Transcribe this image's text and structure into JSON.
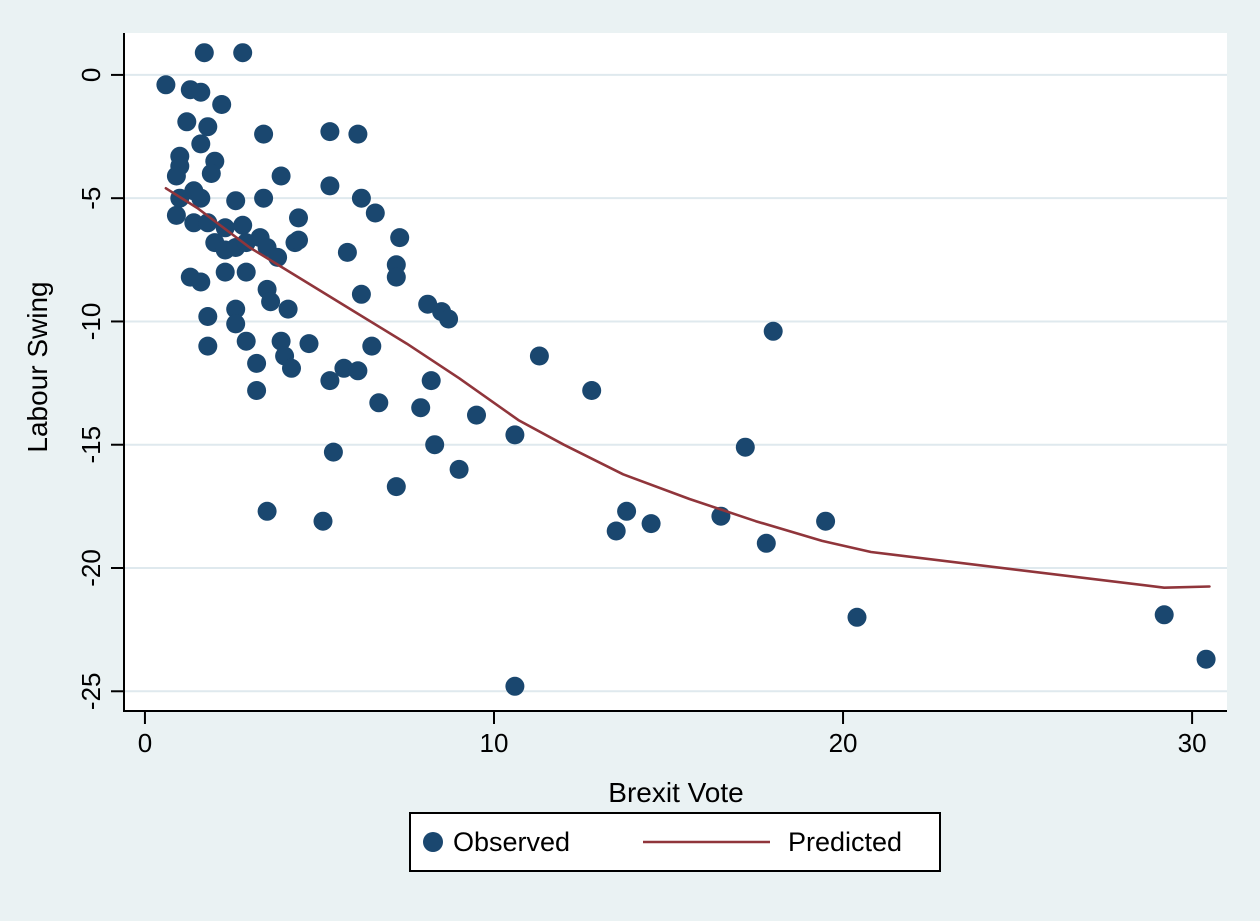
{
  "figure": {
    "kind": "statistical scatter plot with lowess fit (Stata s2color style)"
  },
  "colors": {
    "background": "#EAF2F3",
    "plot_background": "#FFFFFF",
    "grid": "#DFE9EE",
    "axis": "#000000",
    "observed_marker": "#1A476F",
    "predicted_line": "#90353B",
    "legend_border": "#000000",
    "legend_background": "#FFFFFF"
  },
  "chart_data": {
    "type": "scatter",
    "title": "",
    "xlabel": "Brexit Vote",
    "ylabel": "Labour Swing",
    "x_ticks": [
      0,
      10,
      20,
      30
    ],
    "y_ticks": [
      0,
      -5,
      -10,
      -15,
      -20,
      -25
    ],
    "x_domain": [
      -0.6,
      31.0
    ],
    "y_domain": [
      -25.8,
      1.7
    ],
    "grid": "horizontal-only",
    "legend": {
      "position": "bottom-center",
      "entries": [
        {
          "label": "Observed",
          "marker": "circle"
        },
        {
          "label": "Predicted",
          "marker": "line"
        }
      ]
    },
    "series": [
      {
        "name": "Observed",
        "type": "scatter",
        "color": "#1A476F",
        "points": [
          [
            1.7,
            0.9
          ],
          [
            2.8,
            0.9
          ],
          [
            0.6,
            -0.4
          ],
          [
            1.3,
            -0.6
          ],
          [
            1.6,
            -0.7
          ],
          [
            2.2,
            -1.2
          ],
          [
            1.2,
            -1.9
          ],
          [
            1.8,
            -2.1
          ],
          [
            3.4,
            -2.4
          ],
          [
            5.3,
            -2.3
          ],
          [
            6.1,
            -2.4
          ],
          [
            1.6,
            -2.8
          ],
          [
            1.0,
            -3.3
          ],
          [
            1.0,
            -3.7
          ],
          [
            2.0,
            -3.5
          ],
          [
            1.9,
            -4.0
          ],
          [
            0.9,
            -4.1
          ],
          [
            1.4,
            -4.7
          ],
          [
            1.0,
            -5.0
          ],
          [
            1.6,
            -5.0
          ],
          [
            3.9,
            -4.1
          ],
          [
            5.3,
            -4.5
          ],
          [
            2.6,
            -5.1
          ],
          [
            3.4,
            -5.0
          ],
          [
            6.2,
            -5.0
          ],
          [
            0.9,
            -5.7
          ],
          [
            1.4,
            -6.0
          ],
          [
            1.8,
            -6.0
          ],
          [
            2.3,
            -6.2
          ],
          [
            2.8,
            -6.1
          ],
          [
            4.4,
            -5.8
          ],
          [
            6.6,
            -5.6
          ],
          [
            7.3,
            -6.6
          ],
          [
            2.0,
            -6.8
          ],
          [
            2.3,
            -7.1
          ],
          [
            2.6,
            -7.0
          ],
          [
            2.9,
            -6.8
          ],
          [
            3.3,
            -6.6
          ],
          [
            3.5,
            -7.0
          ],
          [
            3.8,
            -7.4
          ],
          [
            4.3,
            -6.8
          ],
          [
            4.4,
            -6.7
          ],
          [
            5.8,
            -7.2
          ],
          [
            7.2,
            -7.7
          ],
          [
            7.2,
            -8.2
          ],
          [
            1.3,
            -8.2
          ],
          [
            1.6,
            -8.4
          ],
          [
            2.3,
            -8.0
          ],
          [
            2.9,
            -8.0
          ],
          [
            3.5,
            -8.7
          ],
          [
            3.6,
            -9.2
          ],
          [
            4.1,
            -9.5
          ],
          [
            6.2,
            -8.9
          ],
          [
            8.1,
            -9.3
          ],
          [
            8.5,
            -9.6
          ],
          [
            8.7,
            -9.9
          ],
          [
            1.8,
            -9.8
          ],
          [
            2.6,
            -9.5
          ],
          [
            2.6,
            -10.1
          ],
          [
            1.8,
            -11.0
          ],
          [
            2.9,
            -10.8
          ],
          [
            3.9,
            -10.8
          ],
          [
            4.7,
            -10.9
          ],
          [
            3.2,
            -11.7
          ],
          [
            4.0,
            -11.4
          ],
          [
            4.2,
            -11.9
          ],
          [
            5.3,
            -12.4
          ],
          [
            5.7,
            -11.9
          ],
          [
            6.1,
            -12.0
          ],
          [
            6.5,
            -11.0
          ],
          [
            8.2,
            -12.4
          ],
          [
            3.2,
            -12.8
          ],
          [
            6.7,
            -13.3
          ],
          [
            7.9,
            -13.5
          ],
          [
            9.5,
            -13.8
          ],
          [
            5.4,
            -15.3
          ],
          [
            8.3,
            -15.0
          ],
          [
            9.0,
            -16.0
          ],
          [
            7.2,
            -16.7
          ],
          [
            3.5,
            -17.7
          ],
          [
            5.1,
            -18.1
          ],
          [
            11.3,
            -11.4
          ],
          [
            18.0,
            -10.4
          ],
          [
            12.8,
            -12.8
          ],
          [
            10.6,
            -14.6
          ],
          [
            17.2,
            -15.1
          ],
          [
            13.8,
            -17.7
          ],
          [
            13.5,
            -18.5
          ],
          [
            14.5,
            -18.2
          ],
          [
            16.5,
            -17.9
          ],
          [
            17.8,
            -19.0
          ],
          [
            19.5,
            -18.1
          ],
          [
            20.4,
            -22.0
          ],
          [
            10.6,
            -24.8
          ],
          [
            29.2,
            -21.9
          ],
          [
            30.4,
            -23.7
          ]
        ]
      },
      {
        "name": "Predicted",
        "type": "line",
        "color": "#90353B",
        "points": [
          [
            0.6,
            -4.6
          ],
          [
            1.5,
            -5.4
          ],
          [
            3.0,
            -7.0
          ],
          [
            4.5,
            -8.3
          ],
          [
            6.0,
            -9.6
          ],
          [
            7.5,
            -10.9
          ],
          [
            9.0,
            -12.3
          ],
          [
            10.7,
            -14.0
          ],
          [
            12.0,
            -15.0
          ],
          [
            13.7,
            -16.2
          ],
          [
            15.6,
            -17.2
          ],
          [
            17.5,
            -18.1
          ],
          [
            19.4,
            -18.9
          ],
          [
            20.8,
            -19.35
          ],
          [
            29.2,
            -20.8
          ],
          [
            30.5,
            -20.75
          ]
        ]
      }
    ]
  }
}
